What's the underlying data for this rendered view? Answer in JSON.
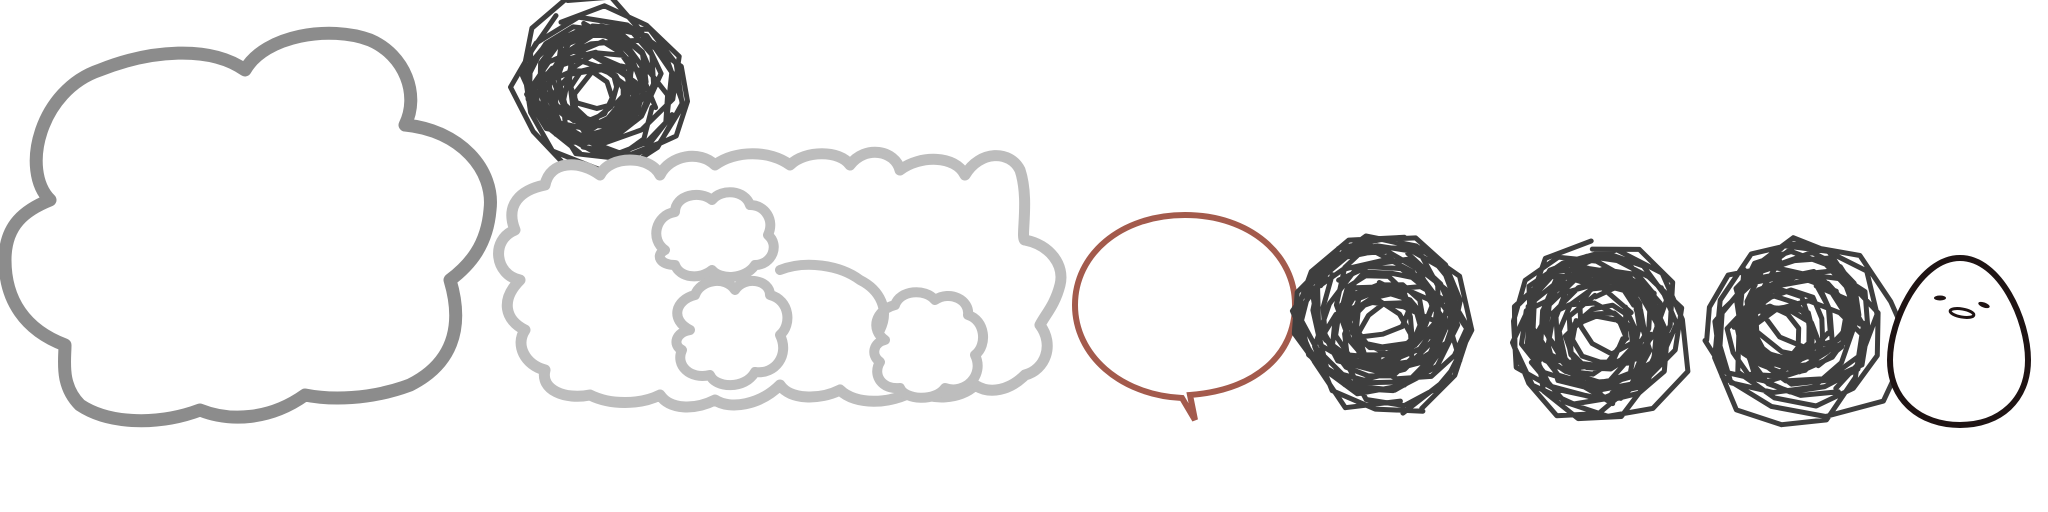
{
  "colors": {
    "background": "#ffffff",
    "big_cloud_stroke": "#8c8c8c",
    "cloud_cluster_stroke": "#bdbdbd",
    "scribble_stroke": "#3e3e3e",
    "speech_bubble_stroke": "#a35a4c",
    "egg_stroke": "#1f1414"
  },
  "items": [
    {
      "name": "big-cloud-outline",
      "icon": "cloud-icon"
    },
    {
      "name": "scribble-ball-top",
      "icon": "scribble-icon"
    },
    {
      "name": "cloud-cluster",
      "icon": "cloud-cluster-icon"
    },
    {
      "name": "speech-bubble",
      "icon": "speech-bubble-icon"
    },
    {
      "name": "scribble-ball-1",
      "icon": "scribble-icon"
    },
    {
      "name": "scribble-ball-2",
      "icon": "scribble-icon"
    },
    {
      "name": "scribble-ball-3",
      "icon": "scribble-icon"
    },
    {
      "name": "egg-face",
      "icon": "egg-face-icon"
    }
  ]
}
